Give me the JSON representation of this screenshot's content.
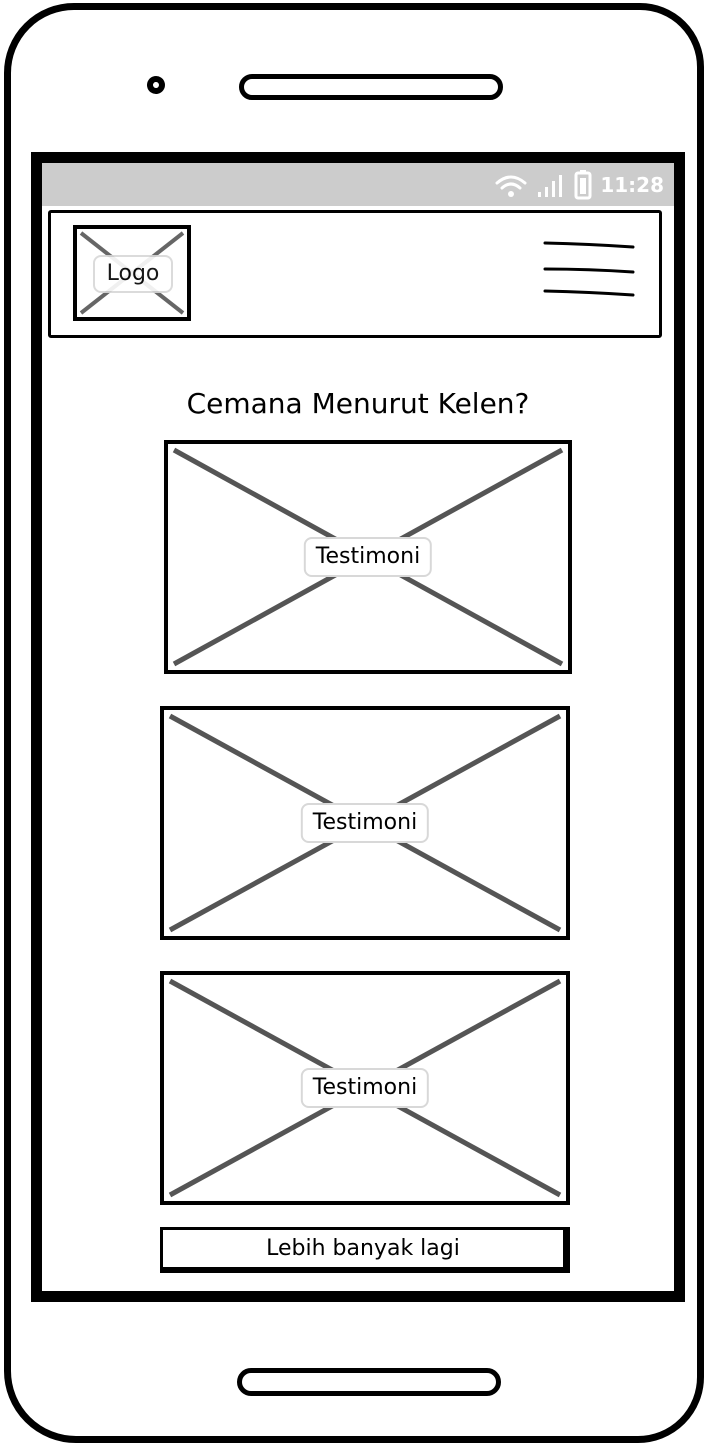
{
  "status_bar": {
    "time": "11:28",
    "icons": [
      "wifi-icon",
      "signal-icon",
      "battery-icon"
    ],
    "background": "#cccccc"
  },
  "header": {
    "logo_label": "Logo",
    "menu_icon": "hamburger-menu-icon"
  },
  "main": {
    "title": "Cemana Menurut Kelen?",
    "testimonials": [
      {
        "label": "Testimoni"
      },
      {
        "label": "Testimoni"
      },
      {
        "label": "Testimoni"
      }
    ],
    "more_button_label": "Lebih banyak lagi"
  }
}
